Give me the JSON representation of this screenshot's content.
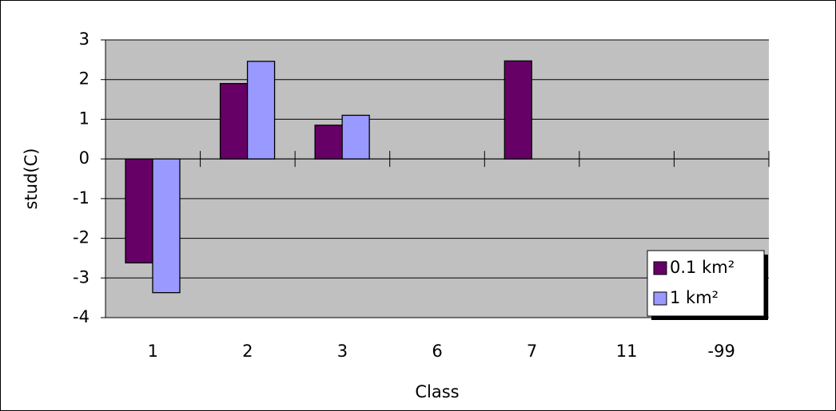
{
  "chart_data": {
    "type": "bar",
    "categories": [
      "1",
      "2",
      "3",
      "6",
      "7",
      "11",
      "-99"
    ],
    "series": [
      {
        "name": "0.1 km²",
        "color": "#660066",
        "values": [
          -2.62,
          1.9,
          0.85,
          null,
          2.47,
          null,
          null
        ]
      },
      {
        "name": "1 km²",
        "color": "#9999ff",
        "values": [
          -3.37,
          2.46,
          1.1,
          null,
          null,
          null,
          null
        ]
      }
    ],
    "x_label": "Class",
    "y_label": "stud(C)",
    "ylim": [
      -4,
      3
    ],
    "yticks": [
      -4,
      -3,
      -2,
      -1,
      0,
      1,
      2,
      3
    ],
    "grid": true,
    "legend": "lower right"
  }
}
